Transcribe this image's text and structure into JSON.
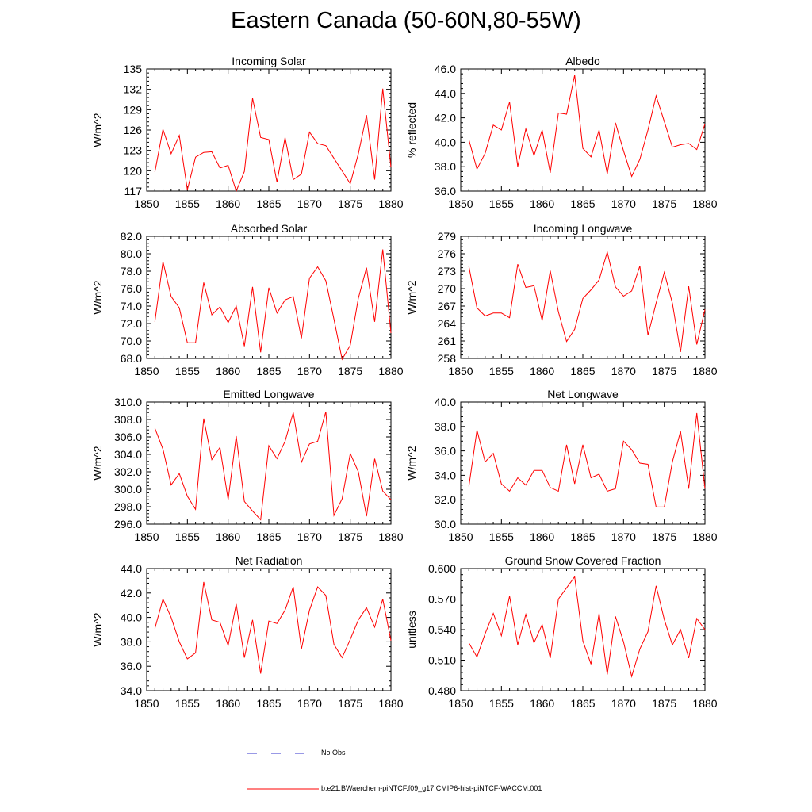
{
  "title": "Eastern Canada (50-60N,80-55W)",
  "colors": {
    "model": "#ff0000",
    "obs": "#3333cc",
    "axis": "#000000"
  },
  "legend": {
    "obs_label": "No Obs",
    "model_label": "b.e21.BWaerchem-piNTCF.f09_g17.CMIP6-hist-piNTCF-WACCM.001"
  },
  "chart_data": [
    {
      "type": "line",
      "title": "Incoming Solar",
      "ylabel": "W/m^2",
      "xlim": [
        1850,
        1880
      ],
      "ylim": [
        117,
        135
      ],
      "xticks": [
        "1850",
        "1855",
        "1860",
        "1865",
        "1870",
        "1875",
        "1880"
      ],
      "yticks": [
        "117",
        "120",
        "123",
        "126",
        "129",
        "132",
        "135"
      ],
      "series": [
        {
          "x": [
            1851,
            1852,
            1853,
            1854,
            1855,
            1856,
            1857,
            1858,
            1859,
            1860,
            1861,
            1862,
            1863,
            1864,
            1865,
            1866,
            1867,
            1868,
            1869,
            1870,
            1871,
            1872,
            1875,
            1876,
            1877,
            1878,
            1879,
            1880
          ],
          "values": [
            119.8,
            126.1,
            122.5,
            125.2,
            117.2,
            122.0,
            122.7,
            122.8,
            120.4,
            120.8,
            117.0,
            119.9,
            130.7,
            124.9,
            124.6,
            118.3,
            124.9,
            118.7,
            119.5,
            125.7,
            124.0,
            123.7,
            118.1,
            122.5,
            128.2,
            118.7,
            132.1,
            120.5
          ]
        }
      ]
    },
    {
      "type": "line",
      "title": "Albedo",
      "ylabel": "% reflected",
      "xlim": [
        1850,
        1880
      ],
      "ylim": [
        36.0,
        46.0
      ],
      "xticks": [
        "1850",
        "1855",
        "1860",
        "1865",
        "1870",
        "1875",
        "1880"
      ],
      "yticks": [
        "36.0",
        "38.0",
        "40.0",
        "42.0",
        "44.0",
        "46.0"
      ],
      "series": [
        {
          "x": [
            1851,
            1852,
            1853,
            1854,
            1855,
            1856,
            1857,
            1858,
            1859,
            1860,
            1861,
            1862,
            1863,
            1864,
            1865,
            1866,
            1867,
            1868,
            1869,
            1870,
            1871,
            1872,
            1873,
            1874,
            1875,
            1876,
            1877,
            1878,
            1879,
            1880
          ],
          "values": [
            40.2,
            37.8,
            39.1,
            41.4,
            41.0,
            43.3,
            38.0,
            41.1,
            38.9,
            41.0,
            37.5,
            42.4,
            42.3,
            45.5,
            39.5,
            38.8,
            41.0,
            37.4,
            41.6,
            39.3,
            37.2,
            38.6,
            41.0,
            43.8,
            41.7,
            39.6,
            39.8,
            39.9,
            39.4,
            41.5
          ]
        }
      ]
    },
    {
      "type": "line",
      "title": "Absorbed Solar",
      "ylabel": "W/m^2",
      "xlim": [
        1850,
        1880
      ],
      "ylim": [
        68.0,
        82.0
      ],
      "xticks": [
        "1850",
        "1855",
        "1860",
        "1865",
        "1870",
        "1875",
        "1880"
      ],
      "yticks": [
        "68.0",
        "70.0",
        "72.0",
        "74.0",
        "76.0",
        "78.0",
        "80.0",
        "82.0"
      ],
      "series": [
        {
          "x": [
            1851,
            1852,
            1853,
            1854,
            1855,
            1856,
            1857,
            1858,
            1859,
            1860,
            1861,
            1862,
            1863,
            1864,
            1865,
            1866,
            1867,
            1868,
            1869,
            1870,
            1871,
            1872,
            1873,
            1874,
            1875,
            1876,
            1877,
            1878,
            1879,
            1880
          ],
          "values": [
            72.2,
            79.1,
            75.1,
            73.8,
            69.8,
            69.8,
            76.7,
            73.0,
            73.9,
            72.1,
            74.0,
            69.4,
            76.2,
            68.7,
            76.1,
            73.2,
            74.7,
            75.1,
            70.3,
            77.2,
            78.5,
            76.9,
            72.5,
            67.9,
            69.5,
            74.9,
            78.4,
            72.2,
            80.5,
            70.9
          ]
        }
      ]
    },
    {
      "type": "line",
      "title": "Incoming Longwave",
      "ylabel": "W/m^2",
      "xlim": [
        1850,
        1880
      ],
      "ylim": [
        258,
        279
      ],
      "xticks": [
        "1850",
        "1855",
        "1860",
        "1865",
        "1870",
        "1875",
        "1880"
      ],
      "yticks": [
        "258",
        "261",
        "264",
        "267",
        "270",
        "273",
        "276",
        "279"
      ],
      "series": [
        {
          "x": [
            1851,
            1852,
            1853,
            1854,
            1855,
            1856,
            1857,
            1858,
            1859,
            1860,
            1861,
            1862,
            1863,
            1864,
            1865,
            1866,
            1867,
            1868,
            1869,
            1870,
            1871,
            1872,
            1873,
            1874,
            1875,
            1876,
            1877,
            1878,
            1879,
            1880
          ],
          "values": [
            273.8,
            266.7,
            265.3,
            265.8,
            265.8,
            265.0,
            274.2,
            270.2,
            270.5,
            264.5,
            273.1,
            266.0,
            260.9,
            263.0,
            268.3,
            269.8,
            271.5,
            276.3,
            270.3,
            268.7,
            269.6,
            273.9,
            262.0,
            267.5,
            272.8,
            267.5,
            259.1,
            270.4,
            260.4,
            266.4
          ]
        }
      ]
    },
    {
      "type": "line",
      "title": "Emitted Longwave",
      "ylabel": "W/m^2",
      "xlim": [
        1850,
        1880
      ],
      "ylim": [
        296.0,
        310.0
      ],
      "xticks": [
        "1850",
        "1855",
        "1860",
        "1865",
        "1870",
        "1875",
        "1880"
      ],
      "yticks": [
        "296.0",
        "298.0",
        "300.0",
        "302.0",
        "304.0",
        "306.0",
        "308.0",
        "310.0"
      ],
      "series": [
        {
          "x": [
            1851,
            1852,
            1853,
            1854,
            1855,
            1856,
            1857,
            1858,
            1859,
            1860,
            1861,
            1862,
            1863,
            1864,
            1865,
            1866,
            1867,
            1868,
            1869,
            1870,
            1871,
            1872,
            1873,
            1874,
            1875,
            1876,
            1877,
            1878,
            1879,
            1880
          ],
          "values": [
            307.0,
            304.6,
            300.5,
            301.8,
            299.2,
            297.7,
            308.1,
            303.4,
            304.8,
            298.8,
            306.1,
            298.6,
            297.5,
            296.5,
            305.0,
            303.5,
            305.5,
            308.8,
            303.1,
            305.2,
            305.5,
            308.9,
            297.0,
            298.9,
            304.1,
            302.0,
            296.9,
            303.5,
            299.8,
            298.8
          ]
        }
      ]
    },
    {
      "type": "line",
      "title": "Net Longwave",
      "ylabel": "W/m^2",
      "xlim": [
        1850,
        1880
      ],
      "ylim": [
        30.0,
        40.0
      ],
      "xticks": [
        "1850",
        "1855",
        "1860",
        "1865",
        "1870",
        "1875",
        "1880"
      ],
      "yticks": [
        "30.0",
        "32.0",
        "34.0",
        "36.0",
        "38.0",
        "40.0"
      ],
      "series": [
        {
          "x": [
            1851,
            1852,
            1853,
            1854,
            1855,
            1856,
            1857,
            1858,
            1859,
            1860,
            1861,
            1862,
            1863,
            1864,
            1865,
            1866,
            1867,
            1868,
            1869,
            1870,
            1871,
            1872,
            1873,
            1874,
            1875,
            1876,
            1877,
            1878,
            1879,
            1880
          ],
          "values": [
            33.1,
            37.7,
            35.1,
            35.8,
            33.3,
            32.7,
            33.8,
            33.2,
            34.4,
            34.4,
            33.0,
            32.7,
            36.5,
            33.3,
            36.5,
            33.8,
            34.1,
            32.7,
            32.9,
            36.8,
            36.1,
            35.0,
            34.9,
            31.4,
            31.4,
            35.1,
            37.6,
            32.9,
            39.1,
            32.9
          ]
        }
      ]
    },
    {
      "type": "line",
      "title": "Net Radiation",
      "ylabel": "W/m^2",
      "xlim": [
        1850,
        1880
      ],
      "ylim": [
        34.0,
        44.0
      ],
      "xticks": [
        "1850",
        "1855",
        "1860",
        "1865",
        "1870",
        "1875",
        "1880"
      ],
      "yticks": [
        "34.0",
        "36.0",
        "38.0",
        "40.0",
        "42.0",
        "44.0"
      ],
      "series": [
        {
          "x": [
            1851,
            1852,
            1853,
            1854,
            1855,
            1856,
            1857,
            1858,
            1859,
            1860,
            1861,
            1862,
            1863,
            1864,
            1865,
            1866,
            1867,
            1868,
            1869,
            1870,
            1871,
            1872,
            1873,
            1874,
            1875,
            1876,
            1877,
            1878,
            1879,
            1880
          ],
          "values": [
            39.1,
            41.5,
            40.0,
            38.0,
            36.6,
            37.1,
            42.9,
            39.8,
            39.6,
            37.7,
            41.1,
            36.7,
            39.8,
            35.4,
            39.7,
            39.5,
            40.6,
            42.5,
            37.4,
            40.6,
            42.5,
            41.8,
            37.8,
            36.7,
            38.2,
            39.8,
            40.8,
            39.2,
            41.5,
            38.1
          ]
        }
      ]
    },
    {
      "type": "line",
      "title": "Ground Snow Covered Fraction",
      "ylabel": "unitless",
      "xlim": [
        1850,
        1880
      ],
      "ylim": [
        0.48,
        0.6
      ],
      "xticks": [
        "1850",
        "1855",
        "1860",
        "1865",
        "1870",
        "1875",
        "1880"
      ],
      "yticks": [
        "0.480",
        "0.510",
        "0.540",
        "0.570",
        "0.600"
      ],
      "series": [
        {
          "x": [
            1851,
            1852,
            1853,
            1854,
            1855,
            1856,
            1857,
            1858,
            1859,
            1860,
            1861,
            1862,
            1864,
            1865,
            1866,
            1867,
            1868,
            1869,
            1870,
            1871,
            1872,
            1873,
            1874,
            1875,
            1876,
            1877,
            1878,
            1879,
            1880
          ],
          "values": [
            0.527,
            0.513,
            0.536,
            0.556,
            0.534,
            0.573,
            0.525,
            0.555,
            0.527,
            0.545,
            0.512,
            0.57,
            0.592,
            0.529,
            0.506,
            0.556,
            0.496,
            0.553,
            0.528,
            0.494,
            0.521,
            0.538,
            0.583,
            0.55,
            0.525,
            0.54,
            0.512,
            0.551,
            0.54
          ]
        }
      ]
    }
  ]
}
